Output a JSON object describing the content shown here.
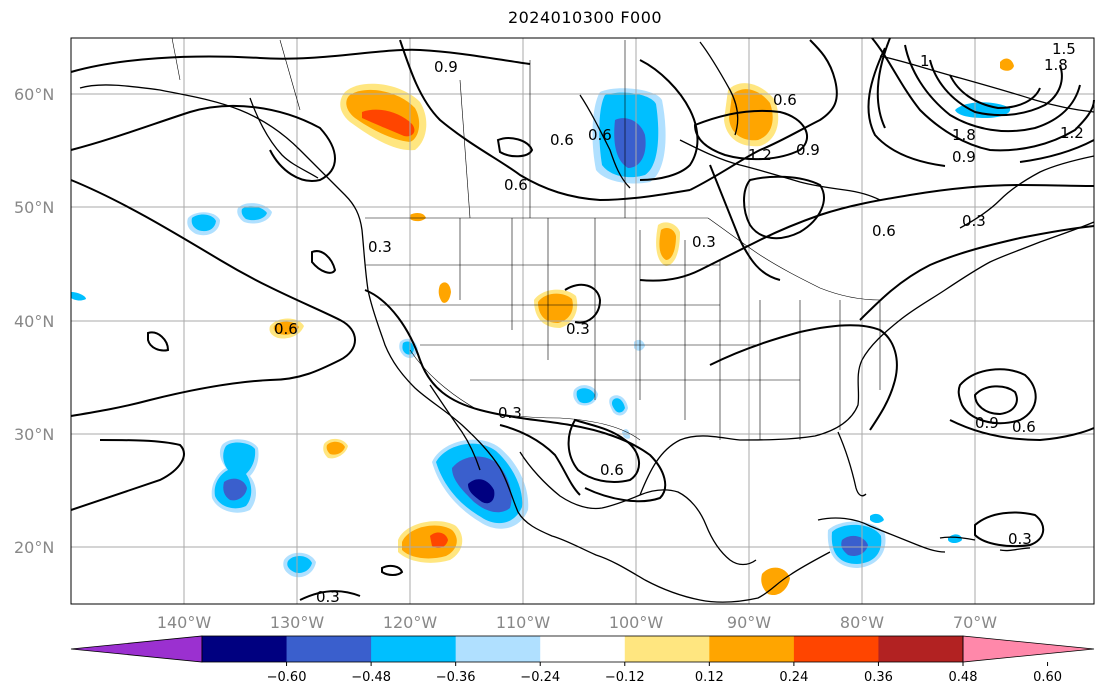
{
  "map": {
    "title": "2024010300 F000",
    "lat_labels": [
      "60°N",
      "50°N",
      "40°N",
      "30°N",
      "20°N"
    ],
    "lon_labels": [
      "140°W",
      "130°W",
      "120°W",
      "110°W",
      "100°W",
      "90°W",
      "80°W",
      "70°W"
    ],
    "contour_labels": [
      "0.9",
      "0.6",
      "0.6",
      "0.6",
      "0.9",
      "1.2",
      "0.6",
      "0.3",
      "0.3",
      "0.6",
      "0.3",
      "0.3",
      "0.6",
      "0.9",
      "0.6",
      "0.3",
      "0.3",
      "1",
      "1.8",
      "0.9",
      "1.2",
      "1.5",
      "1.8",
      "0.3",
      "0.6"
    ]
  },
  "colorbar": {
    "ticks": [
      "−0.60",
      "−0.48",
      "−0.36",
      "−0.24",
      "−0.12",
      "0.12",
      "0.24",
      "0.36",
      "0.48",
      "0.60"
    ],
    "colors": [
      "#9b30d0",
      "#000080",
      "#3a5fcd",
      "#00bfff",
      "#b0e0ff",
      "#ffffff",
      "#ffe680",
      "#ffa500",
      "#ff4500",
      "#b22222",
      "#ff88aa"
    ]
  }
}
